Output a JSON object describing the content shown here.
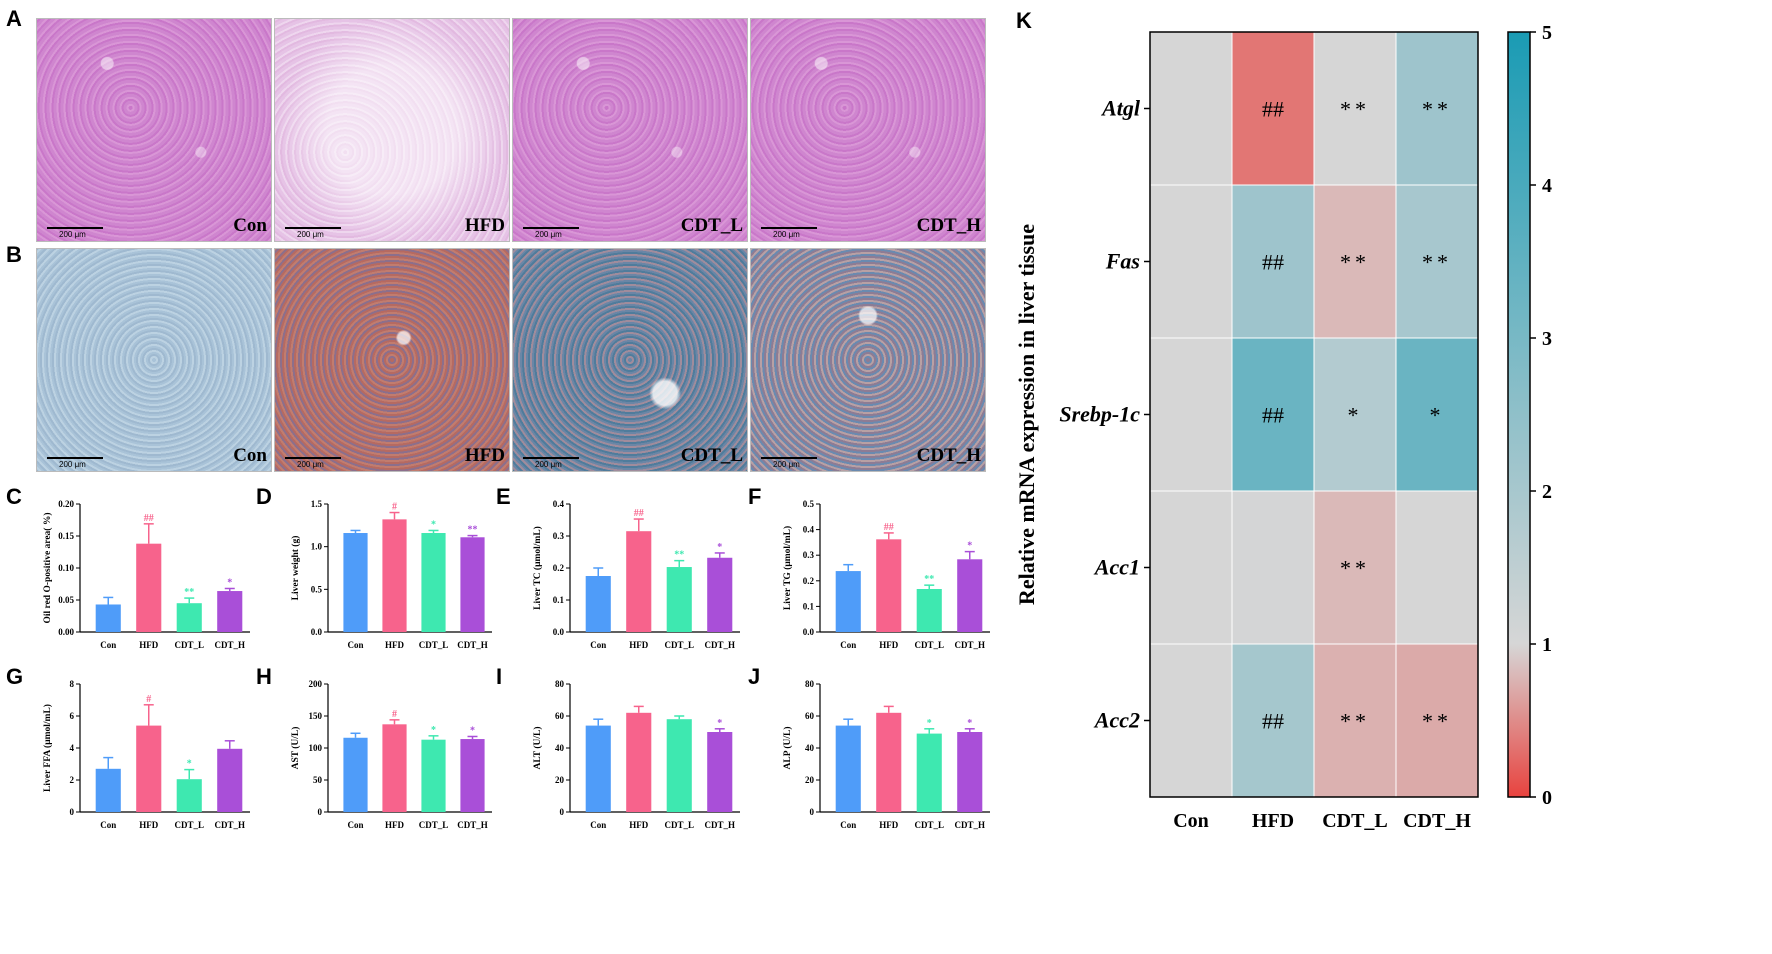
{
  "panels": {
    "A": "A",
    "B": "B",
    "C": "C",
    "D": "D",
    "E": "E",
    "F": "F",
    "G": "G",
    "H": "H",
    "I": "I",
    "J": "J",
    "K": "K"
  },
  "micrographs": {
    "scale": "200 μm",
    "rowA": [
      "Con",
      "HFD",
      "CDT_L",
      "CDT_H"
    ],
    "rowB": [
      "Con",
      "HFD",
      "CDT_L",
      "CDT_H"
    ]
  },
  "colors": {
    "Con": "#4f9cf9",
    "HFD": "#f7638c",
    "CDT_L": "#3ee8b0",
    "CDT_H": "#a94fd8"
  },
  "chart_data": [
    {
      "panel": "C",
      "type": "bar",
      "ylabel": "Oil red O-positive area( %)",
      "categories": [
        "Con",
        "HFD",
        "CDT_L",
        "CDT_H"
      ],
      "values": [
        0.043,
        0.138,
        0.045,
        0.064
      ],
      "errors": [
        0.011,
        0.031,
        0.008,
        0.004
      ],
      "ylim": [
        0,
        0.2
      ],
      "ticks": [
        0,
        0.05,
        0.1,
        0.15,
        0.2
      ],
      "tick_labels": [
        "0.00",
        "0.05",
        "0.10",
        "0.15",
        "0.20"
      ],
      "annotations": [
        "",
        "##",
        "**",
        "*"
      ]
    },
    {
      "panel": "D",
      "type": "bar",
      "ylabel": "Liver weight (g)",
      "categories": [
        "Con",
        "HFD",
        "CDT_L",
        "CDT_H"
      ],
      "values": [
        1.16,
        1.32,
        1.16,
        1.11
      ],
      "errors": [
        0.03,
        0.08,
        0.03,
        0.02
      ],
      "ylim": [
        0,
        1.5
      ],
      "ticks": [
        0,
        0.5,
        1.0,
        1.5
      ],
      "tick_labels": [
        "0.0",
        "0.5",
        "1.0",
        "1.5"
      ],
      "annotations": [
        "",
        "#",
        "*",
        "**"
      ]
    },
    {
      "panel": "E",
      "type": "bar",
      "ylabel": "Liver TC (μmol/mL)",
      "categories": [
        "Con",
        "HFD",
        "CDT_L",
        "CDT_H"
      ],
      "values": [
        0.175,
        0.315,
        0.203,
        0.232
      ],
      "errors": [
        0.025,
        0.038,
        0.02,
        0.015
      ],
      "ylim": [
        0,
        0.4
      ],
      "ticks": [
        0,
        0.1,
        0.2,
        0.3,
        0.4
      ],
      "tick_labels": [
        "0.0",
        "0.1",
        "0.2",
        "0.3",
        "0.4"
      ],
      "annotations": [
        "",
        "##",
        "**",
        "*"
      ]
    },
    {
      "panel": "F",
      "type": "bar",
      "ylabel": "Liver TG (μmol/mL)",
      "categories": [
        "Con",
        "HFD",
        "CDT_L",
        "CDT_H"
      ],
      "values": [
        0.238,
        0.362,
        0.168,
        0.284
      ],
      "errors": [
        0.025,
        0.025,
        0.015,
        0.03
      ],
      "ylim": [
        0,
        0.5
      ],
      "ticks": [
        0,
        0.1,
        0.2,
        0.3,
        0.4,
        0.5
      ],
      "tick_labels": [
        "0.0",
        "0.1",
        "0.2",
        "0.3",
        "0.4",
        "0.5"
      ],
      "annotations": [
        "",
        "##",
        "**",
        "*"
      ]
    },
    {
      "panel": "G",
      "type": "bar",
      "ylabel": "Liver FFA (μmol/mL)",
      "categories": [
        "Con",
        "HFD",
        "CDT_L",
        "CDT_H"
      ],
      "values": [
        2.7,
        5.4,
        2.05,
        3.95
      ],
      "errors": [
        0.7,
        1.3,
        0.6,
        0.5
      ],
      "ylim": [
        0,
        8
      ],
      "ticks": [
        0,
        2,
        4,
        6,
        8
      ],
      "tick_labels": [
        "0",
        "2",
        "4",
        "6",
        "8"
      ],
      "annotations": [
        "",
        "#",
        "*",
        ""
      ]
    },
    {
      "panel": "H",
      "type": "bar",
      "ylabel": "AST (U/L)",
      "categories": [
        "Con",
        "HFD",
        "CDT_L",
        "CDT_H"
      ],
      "values": [
        116,
        137,
        113,
        114
      ],
      "errors": [
        7,
        7,
        6,
        4
      ],
      "ylim": [
        0,
        200
      ],
      "ticks": [
        0,
        50,
        100,
        150,
        200
      ],
      "tick_labels": [
        "0",
        "50",
        "100",
        "150",
        "200"
      ],
      "annotations": [
        "",
        "#",
        "*",
        "*"
      ]
    },
    {
      "panel": "I",
      "type": "bar",
      "ylabel": "ALT (U/L)",
      "categories": [
        "Con",
        "HFD",
        "CDT_L",
        "CDT_H"
      ],
      "values": [
        54,
        62,
        58,
        50
      ],
      "errors": [
        4,
        4,
        2,
        2
      ],
      "ylim": [
        0,
        80
      ],
      "ticks": [
        0,
        20,
        40,
        60,
        80
      ],
      "tick_labels": [
        "0",
        "20",
        "40",
        "60",
        "80"
      ],
      "annotations": [
        "",
        "",
        "",
        "*"
      ]
    },
    {
      "panel": "J",
      "type": "bar",
      "ylabel": "ALP (U/L)",
      "categories": [
        "Con",
        "HFD",
        "CDT_L",
        "CDT_H"
      ],
      "values": [
        54,
        62,
        49,
        50
      ],
      "errors": [
        4,
        4,
        3,
        2
      ],
      "ylim": [
        0,
        80
      ],
      "ticks": [
        0,
        20,
        40,
        60,
        80
      ],
      "tick_labels": [
        "0",
        "20",
        "40",
        "60",
        "80"
      ],
      "annotations": [
        "",
        "",
        "*",
        "*"
      ]
    },
    {
      "panel": "K",
      "type": "heatmap",
      "ylabel": "Relative mRNA expression in liver tissue",
      "columns": [
        "Con",
        "HFD",
        "CDT_L",
        "CDT_H"
      ],
      "rows": [
        "Atgl",
        "Fas",
        "Srebp-1c",
        "Acc1",
        "Acc2"
      ],
      "values": [
        [
          1.0,
          0.35,
          1.0,
          2.2
        ],
        [
          1.0,
          2.2,
          0.8,
          2.0
        ],
        [
          1.0,
          3.3,
          1.75,
          3.3
        ],
        [
          1.0,
          1.05,
          0.8,
          1.0
        ],
        [
          1.0,
          2.05,
          0.75,
          0.7
        ]
      ],
      "annotations": [
        [
          "",
          "##",
          "**",
          "**"
        ],
        [
          "",
          "##",
          "**",
          "**"
        ],
        [
          "",
          "##",
          "*",
          "*"
        ],
        [
          "",
          "",
          "**",
          ""
        ],
        [
          "",
          "##",
          "**",
          "**"
        ]
      ],
      "colorbar": {
        "min": 0,
        "max": 5,
        "ticks": [
          0,
          1,
          2,
          3,
          4,
          5
        ],
        "low": "#e8433f",
        "mid": "#d6d6d6",
        "high": "#1a9bb4"
      }
    }
  ]
}
